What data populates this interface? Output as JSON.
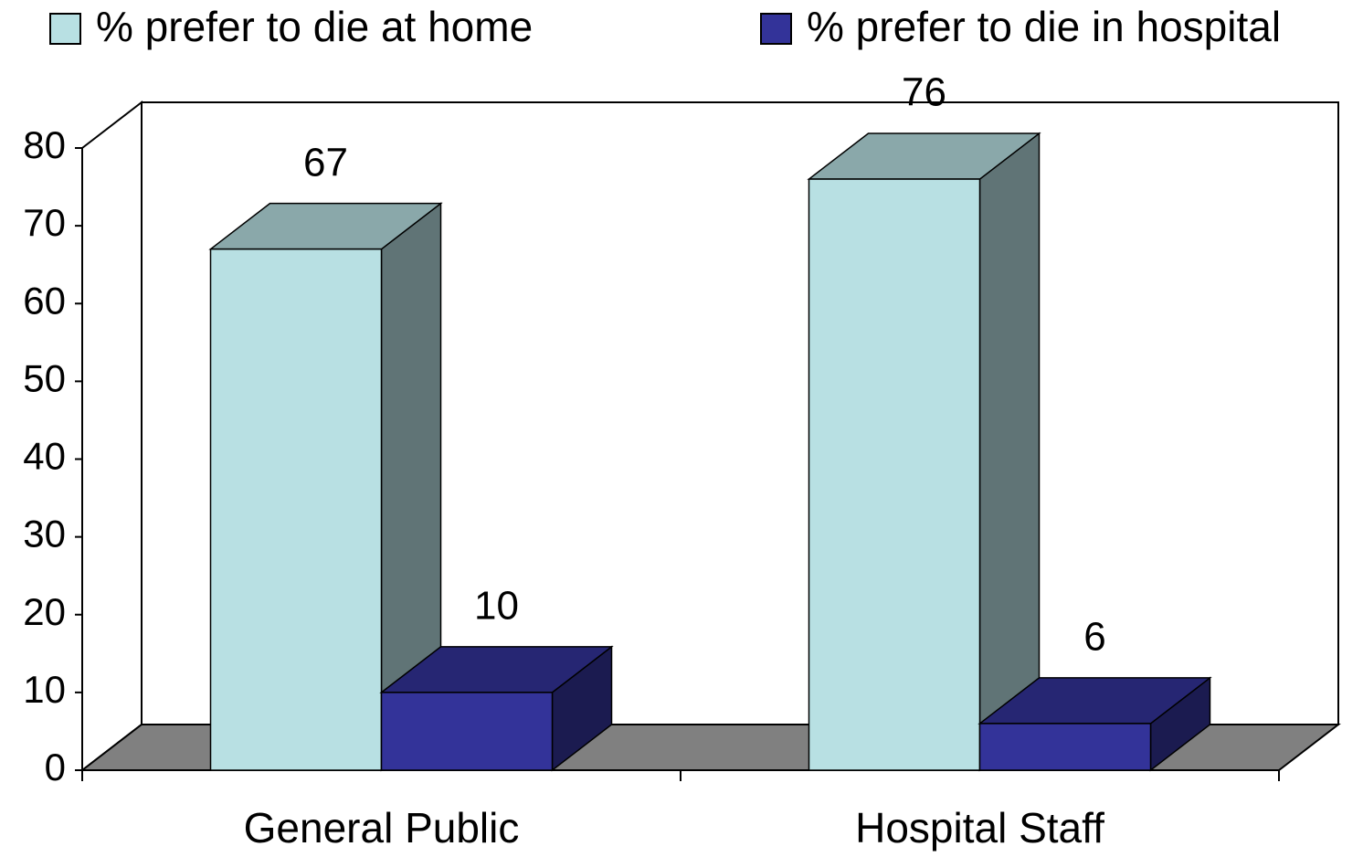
{
  "chart_data": {
    "type": "bar3d",
    "categories": [
      "General Public",
      "Hospital Staff"
    ],
    "series": [
      {
        "name": "% prefer to die at home",
        "color": "#b8e0e3",
        "values": [
          67,
          76
        ]
      },
      {
        "name": "% prefer to die in hospital",
        "color": "#333399",
        "values": [
          10,
          6
        ]
      }
    ],
    "ylim": [
      0,
      80
    ],
    "yticks": [
      0,
      10,
      20,
      30,
      40,
      50,
      60,
      70,
      80
    ],
    "legend": "top"
  }
}
